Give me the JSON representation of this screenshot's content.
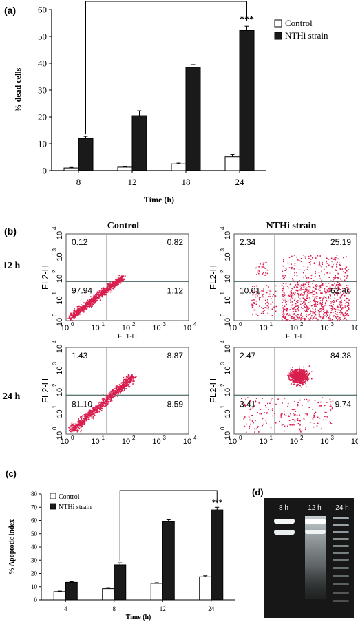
{
  "panels": {
    "a": "(a)",
    "b": "(b)",
    "c": "(c)",
    "d": "(d)"
  },
  "colors": {
    "bar_control": "#ffffff",
    "bar_nthi": "#1a1a1a",
    "dots": "#d81e4e",
    "gel_bg": "#171717",
    "gel_band": "#e8eef0"
  },
  "chart_data": [
    {
      "type": "bar",
      "panel": "a",
      "categories": [
        "8",
        "12",
        "18",
        "24"
      ],
      "series": [
        {
          "name": "Control",
          "values": [
            1.0,
            1.3,
            2.5,
            5.2
          ],
          "errors": [
            0.2,
            0.2,
            0.3,
            0.8
          ]
        },
        {
          "name": "NTHi strain",
          "values": [
            12.0,
            20.5,
            38.5,
            52.2
          ],
          "errors": [
            0.8,
            1.8,
            1.0,
            1.6
          ]
        }
      ],
      "xlabel": "Time (h)",
      "ylabel": "% dead cells",
      "ylim": [
        0,
        60
      ],
      "yticks": [
        "0",
        "10",
        "20",
        "30",
        "40",
        "50",
        "60"
      ],
      "significance": "***",
      "bracket": [
        "8",
        "24"
      ],
      "legend_position": "top-right"
    },
    {
      "type": "scatter",
      "panel": "b",
      "column_titles": [
        "Control",
        "NTHi strain"
      ],
      "row_labels": [
        "12 h",
        "24 h"
      ],
      "xlabel": "FL1-H",
      "ylabel": "FL2-H",
      "axis_scale": "log",
      "tick_labels": [
        "10",
        "10",
        "10",
        "10",
        "10"
      ],
      "tick_exponents": [
        "0",
        "1",
        "2",
        "3",
        "4"
      ],
      "plots": [
        {
          "condition": "Control",
          "time": "12 h",
          "quadrants": {
            "upper_left": "0.12",
            "upper_right": "0.82",
            "lower_left": "97.94",
            "lower_right": "1.12"
          },
          "show_xlabel": true
        },
        {
          "condition": "NTHi strain",
          "time": "12 h",
          "quadrants": {
            "upper_left": "2.34",
            "upper_right": "25.19",
            "lower_left": "10.01",
            "lower_right": "62.46"
          },
          "show_xlabel": true
        },
        {
          "condition": "Control",
          "time": "24 h",
          "quadrants": {
            "upper_left": "1.43",
            "upper_right": "8.87",
            "lower_left": "81.10",
            "lower_right": "8.59"
          },
          "show_xlabel": false
        },
        {
          "condition": "NTHi strain",
          "time": "24 h",
          "quadrants": {
            "upper_left": "2.47",
            "upper_right": "84.38",
            "lower_left": "3.41",
            "lower_right": "9.74"
          },
          "show_xlabel": false
        }
      ]
    },
    {
      "type": "bar",
      "panel": "c",
      "categories": [
        "4",
        "8",
        "12",
        "24"
      ],
      "series": [
        {
          "name": "Control",
          "values": [
            6.3,
            8.5,
            12.5,
            17.5
          ],
          "errors": [
            0.4,
            0.8,
            0.5,
            0.8
          ]
        },
        {
          "name": "NTHi strain",
          "values": [
            13.3,
            26.5,
            59.0,
            68.0
          ],
          "errors": [
            0.5,
            1.5,
            1.5,
            2.0
          ]
        }
      ],
      "xlabel": "Time (h)",
      "ylabel": "% Apoptotic index",
      "ylim": [
        0,
        80
      ],
      "yticks": [
        "0",
        "10",
        "20",
        "30",
        "40",
        "50",
        "60",
        "70",
        "80"
      ],
      "significance": "***",
      "bracket": [
        "8",
        "24"
      ],
      "legend_position": "top-left"
    }
  ],
  "gel": {
    "lanes": [
      "8 h",
      "12 h",
      "24 h"
    ]
  }
}
